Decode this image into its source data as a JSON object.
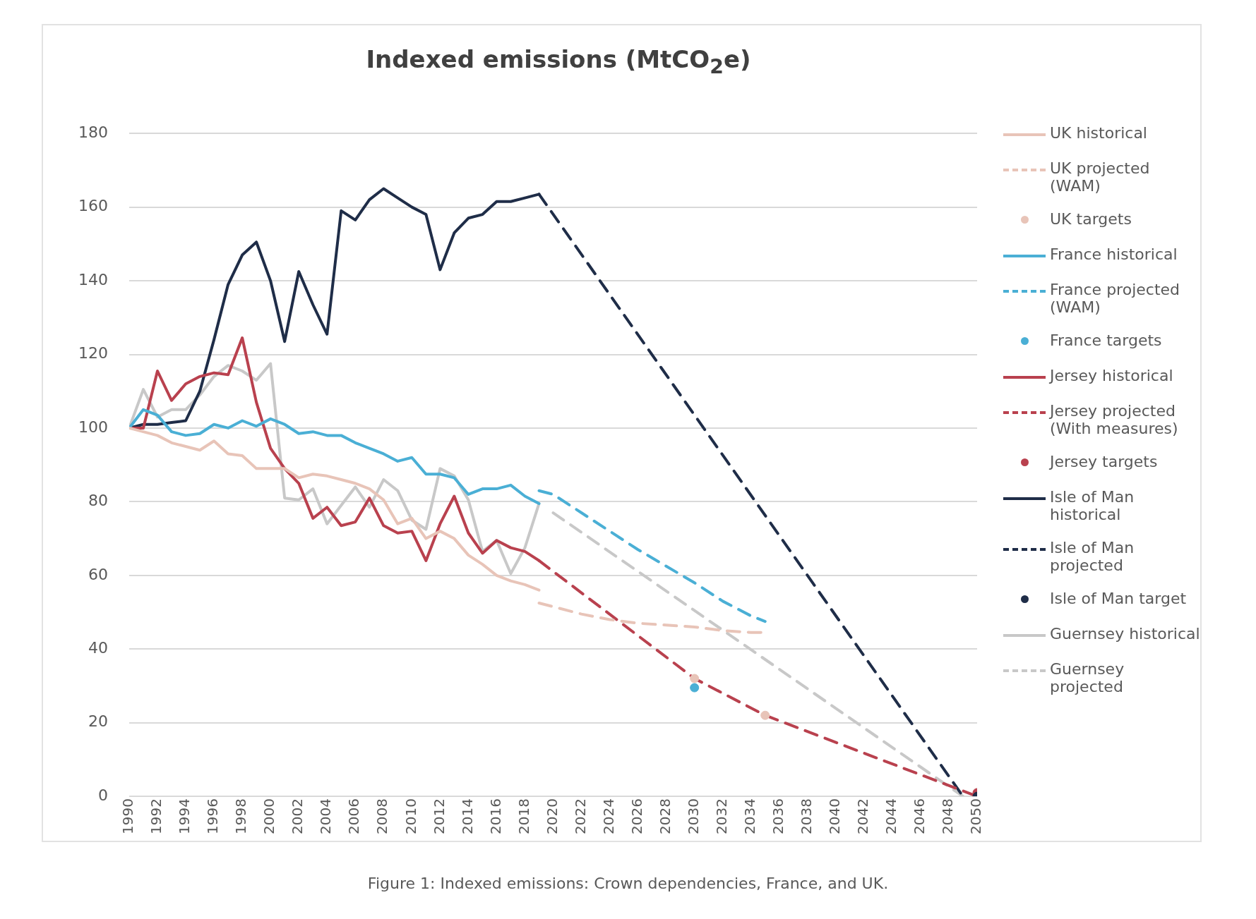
{
  "chart_data": {
    "type": "line",
    "title": "Indexed emissions (MtCO$_{2}$e)",
    "annotations": [
      "Figure 1: Indexed emissions: Crown dependencies, France, and UK."
    ],
    "xlim": [
      1990,
      2050
    ],
    "xticks": [
      1990,
      1992,
      1994,
      1996,
      1998,
      2000,
      2002,
      2004,
      2006,
      2008,
      2010,
      2012,
      2014,
      2016,
      2018,
      2020,
      2022,
      2024,
      2026,
      2028,
      2030,
      2032,
      2034,
      2036,
      2038,
      2040,
      2042,
      2044,
      2046,
      2048,
      2050
    ],
    "ylim": [
      0,
      180
    ],
    "yticks": [
      0,
      20,
      40,
      60,
      80,
      100,
      120,
      140,
      160,
      180
    ],
    "grid": "y",
    "legend": "right",
    "series": [
      {
        "name": "UK historical",
        "type": "line",
        "line_style": "solid",
        "color": "#e8c4b8",
        "x": [
          1990,
          1991,
          1992,
          1993,
          1994,
          1995,
          1996,
          1997,
          1998,
          1999,
          2000,
          2001,
          2002,
          2003,
          2004,
          2005,
          2006,
          2007,
          2008,
          2009,
          2010,
          2011,
          2012,
          2013,
          2014,
          2015,
          2016,
          2017,
          2018,
          2019
        ],
        "values": [
          100,
          99,
          98,
          96,
          95,
          94,
          96.5,
          93,
          92.5,
          89,
          89,
          89,
          86.5,
          87.5,
          87,
          86,
          85,
          83.5,
          80.5,
          74,
          75.5,
          70,
          72,
          70,
          65.5,
          63,
          60,
          58.5,
          57.5,
          56
        ]
      },
      {
        "name": "UK projected (WAM)",
        "type": "line",
        "line_style": "dashed",
        "color": "#e8c4b8",
        "x": [
          2019,
          2020,
          2022,
          2024,
          2026,
          2028,
          2030,
          2032,
          2034,
          2035
        ],
        "values": [
          52.5,
          51.5,
          49.5,
          48,
          47,
          46.5,
          46,
          45,
          44.5,
          44.5
        ]
      },
      {
        "name": "UK targets",
        "type": "scatter",
        "marker": "circle",
        "color": "#e8c4b8",
        "x": [
          2030,
          2035
        ],
        "values": [
          32,
          22
        ]
      },
      {
        "name": "France historical",
        "type": "line",
        "line_style": "solid",
        "color": "#4aafd5",
        "x": [
          1990,
          1991,
          1992,
          1993,
          1994,
          1995,
          1996,
          1997,
          1998,
          1999,
          2000,
          2001,
          2002,
          2003,
          2004,
          2005,
          2006,
          2007,
          2008,
          2009,
          2010,
          2011,
          2012,
          2013,
          2014,
          2015,
          2016,
          2017,
          2018,
          2019
        ],
        "values": [
          100,
          105,
          103.5,
          99,
          98,
          98.5,
          101,
          100,
          102,
          100.5,
          102.5,
          101,
          98.5,
          99,
          98,
          98,
          96,
          94.5,
          93,
          91,
          92,
          87.5,
          87.5,
          86.5,
          82,
          83.5,
          83.5,
          84.5,
          81.5,
          79.5
        ]
      },
      {
        "name": "France projected (WAM)",
        "type": "line",
        "line_style": "dashed",
        "color": "#4aafd5",
        "x": [
          2019,
          2020,
          2022,
          2024,
          2026,
          2028,
          2030,
          2032,
          2034,
          2035
        ],
        "values": [
          83,
          82,
          77,
          72,
          67,
          62.5,
          58,
          53,
          49,
          47.5
        ]
      },
      {
        "name": "France targets",
        "type": "scatter",
        "marker": "circle",
        "color": "#4aafd5",
        "x": [
          2030
        ],
        "values": [
          29.5
        ]
      },
      {
        "name": "Jersey historical",
        "type": "line",
        "line_style": "solid",
        "color": "#b9414e",
        "x": [
          1990,
          1991,
          1992,
          1993,
          1994,
          1995,
          1996,
          1997,
          1998,
          1999,
          2000,
          2001,
          2002,
          2003,
          2004,
          2005,
          2006,
          2007,
          2008,
          2009,
          2010,
          2011,
          2012,
          2013,
          2014,
          2015,
          2016,
          2017,
          2018,
          2019
        ],
        "values": [
          100,
          100,
          115.5,
          107.5,
          112,
          114,
          115,
          114.5,
          124.5,
          107,
          94.5,
          89,
          85,
          75.5,
          78.5,
          73.5,
          74.5,
          81,
          73.5,
          71.5,
          72,
          64,
          74,
          81.5,
          71.5,
          66,
          69.5,
          67.5,
          66.5,
          64
        ]
      },
      {
        "name": "Jersey projected (With measures)",
        "type": "line",
        "line_style": "dashed",
        "color": "#b9414e",
        "x": [
          2019,
          2030,
          2035,
          2050
        ],
        "values": [
          64,
          32,
          22,
          0
        ]
      },
      {
        "name": "Jersey targets",
        "type": "scatter",
        "marker": "circle",
        "color": "#b9414e",
        "x": [
          2050
        ],
        "values": [
          1
        ]
      },
      {
        "name": "Isle of Man historical",
        "type": "line",
        "line_style": "solid",
        "color": "#1f2d48",
        "x": [
          1990,
          1991,
          1992,
          1993,
          1994,
          1995,
          1996,
          1997,
          1998,
          1999,
          2000,
          2001,
          2002,
          2003,
          2004,
          2005,
          2006,
          2007,
          2008,
          2009,
          2010,
          2011,
          2012,
          2013,
          2014,
          2015,
          2016,
          2017,
          2018,
          2019
        ],
        "values": [
          100,
          101,
          101,
          101.5,
          102,
          110,
          124,
          139,
          147,
          150.5,
          140,
          123.5,
          142.5,
          133.5,
          125.5,
          159,
          156.5,
          162,
          165,
          162.5,
          160,
          158,
          143,
          153,
          157,
          158,
          161.5,
          161.5,
          162.5,
          163.5
        ]
      },
      {
        "name": "Isle of Man projected",
        "type": "line",
        "line_style": "dashed",
        "color": "#1f2d48",
        "x": [
          2019,
          2049
        ],
        "values": [
          163.5,
          0
        ]
      },
      {
        "name": "Isle of Man target",
        "type": "scatter",
        "marker": "circle",
        "color": "#1f2d48",
        "x": [
          2050
        ],
        "values": [
          0
        ]
      },
      {
        "name": "Guernsey historical",
        "type": "line",
        "line_style": "solid",
        "color": "#c8c8c8",
        "x": [
          1990,
          1991,
          1992,
          1993,
          1994,
          1995,
          1996,
          1997,
          1998,
          1999,
          2000,
          2001,
          2002,
          2003,
          2004,
          2005,
          2006,
          2007,
          2008,
          2009,
          2010,
          2011,
          2012,
          2013,
          2014,
          2015,
          2016,
          2017,
          2018,
          2019
        ],
        "values": [
          100,
          110.5,
          103,
          105,
          105,
          109,
          114,
          117,
          115.5,
          113,
          117.5,
          81,
          80.5,
          83.5,
          74,
          79,
          84,
          78.5,
          86,
          83,
          75,
          72.5,
          89,
          87,
          80.5,
          66.5,
          69.5,
          60.5,
          67.5,
          79.5
        ]
      },
      {
        "name": "Guernsey projected",
        "type": "line",
        "line_style": "dashed",
        "color": "#c8c8c8",
        "x": [
          2020,
          2049
        ],
        "values": [
          77,
          0
        ]
      }
    ]
  }
}
